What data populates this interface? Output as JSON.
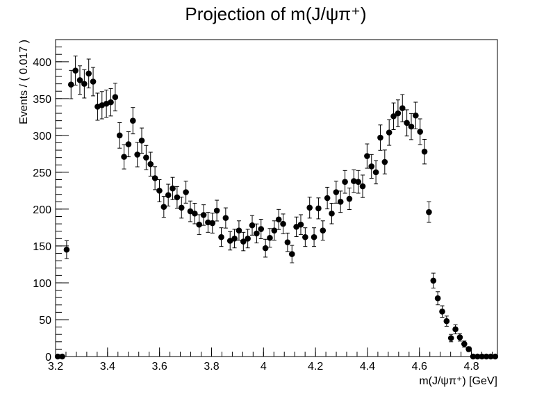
{
  "chart_data": {
    "type": "scatter",
    "title": "Projection of m(J/ψπ⁺)",
    "xlabel": "m(J/ψπ⁺) [GeV]",
    "ylabel": "Events / ( 0.017 )",
    "xlim": [
      3.2,
      4.9
    ],
    "ylim": [
      0,
      430
    ],
    "x_ticks": [
      "3.2",
      "3.4",
      "3.6",
      "3.8",
      "4",
      "4.2",
      "4.4",
      "4.6",
      "4.8"
    ],
    "y_ticks": [
      "0",
      "50",
      "100",
      "150",
      "200",
      "250",
      "300",
      "350",
      "400"
    ],
    "grid": false,
    "legend": "none",
    "marker_color": "#000000",
    "series": [
      {
        "x": [
          3.2085,
          3.2255,
          3.2425,
          3.2595,
          3.2765,
          3.2935,
          3.3105,
          3.3275,
          3.3445,
          3.3615,
          3.3785,
          3.3955,
          3.4125,
          3.4295,
          3.4465,
          3.4635,
          3.4805,
          3.4975,
          3.5145,
          3.5315,
          3.5485,
          3.5655,
          3.5825,
          3.5995,
          3.6165,
          3.6335,
          3.6505,
          3.6675,
          3.6845,
          3.7015,
          3.7185,
          3.7355,
          3.7525,
          3.7695,
          3.7865,
          3.8035,
          3.8205,
          3.8375,
          3.8545,
          3.8715,
          3.8885,
          3.9055,
          3.9225,
          3.9395,
          3.9565,
          3.9735,
          3.9905,
          4.0075,
          4.0245,
          4.0415,
          4.0585,
          4.0755,
          4.0925,
          4.1095,
          4.1265,
          4.1435,
          4.1605,
          4.1775,
          4.1945,
          4.2115,
          4.2285,
          4.2455,
          4.2625,
          4.2795,
          4.2965,
          4.3135,
          4.3305,
          4.3475,
          4.3645,
          4.3815,
          4.3985,
          4.4155,
          4.4325,
          4.4495,
          4.4665,
          4.4835,
          4.5005,
          4.5175,
          4.5345,
          4.5515,
          4.5685,
          4.5855,
          4.6025,
          4.6195,
          4.6365,
          4.6535,
          4.6705,
          4.6875,
          4.7045,
          4.7215,
          4.7385,
          4.7555,
          4.7725,
          4.7895,
          4.8065,
          4.8235,
          4.8405,
          4.8575,
          4.8745,
          4.8915
        ],
        "y": [
          0,
          0,
          145,
          369,
          388,
          375,
          370,
          384,
          373,
          339,
          341,
          343,
          345,
          352,
          300,
          271,
          288,
          320,
          274,
          293,
          270,
          261,
          242,
          225,
          203,
          219,
          228,
          216,
          202,
          223,
          197,
          194,
          179,
          192,
          182,
          181,
          198,
          162,
          188,
          157,
          160,
          171,
          156,
          160,
          178,
          167,
          173,
          147,
          161,
          171,
          186,
          180,
          155,
          139,
          176,
          179,
          162,
          202,
          162,
          201,
          171,
          215,
          194,
          223,
          210,
          237,
          214,
          238,
          237,
          231,
          272,
          258,
          250,
          297,
          264,
          304,
          326,
          330,
          337,
          317,
          312,
          327,
          305,
          278,
          196,
          103,
          79,
          61,
          48,
          25,
          37,
          26,
          17,
          10,
          0,
          0,
          0,
          0,
          0,
          0
        ],
        "err": [
          0,
          0,
          12.1,
          19.2,
          19.7,
          19.4,
          19.2,
          19.6,
          19.3,
          18.4,
          18.5,
          18.5,
          18.6,
          18.8,
          17.3,
          16.5,
          17.0,
          17.9,
          16.6,
          17.1,
          16.4,
          16.2,
          15.6,
          15.0,
          14.2,
          14.8,
          15.1,
          14.7,
          14.2,
          14.9,
          14.0,
          13.9,
          13.4,
          13.9,
          13.5,
          13.5,
          14.1,
          12.7,
          13.7,
          12.5,
          12.6,
          13.1,
          12.5,
          12.6,
          13.3,
          12.9,
          13.2,
          12.1,
          12.7,
          13.1,
          13.6,
          13.4,
          12.5,
          11.8,
          13.3,
          13.4,
          12.7,
          14.2,
          12.7,
          14.2,
          13.1,
          14.7,
          13.9,
          14.9,
          14.5,
          15.4,
          14.6,
          15.4,
          15.4,
          15.2,
          16.5,
          16.1,
          15.8,
          17.2,
          16.2,
          17.4,
          18.1,
          18.2,
          18.4,
          17.8,
          17.7,
          18.1,
          17.5,
          16.7,
          14.0,
          10.1,
          8.9,
          7.8,
          6.9,
          5.0,
          6.1,
          5.1,
          4.1,
          3.2,
          0,
          0,
          0,
          0,
          0,
          0
        ]
      }
    ]
  }
}
